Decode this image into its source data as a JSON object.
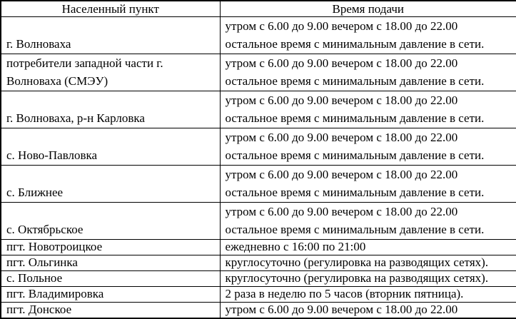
{
  "table": {
    "headers": {
      "settlement": "Населенный пункт",
      "schedule": "Время подачи"
    },
    "rows": [
      {
        "settlement": "г. Волноваха",
        "schedule": [
          "утром с 6.00 до 9.00 вечером с 18.00 до 22.00",
          "остальное время с минимальным давление в сети."
        ]
      },
      {
        "settlement": "потребители западной части г. Волноваха (СМЭУ)",
        "schedule": [
          "утром с 6.00 до 9.00 вечером с 18.00 до 22.00",
          "остальное время с минимальным давление в сети."
        ]
      },
      {
        "settlement": "г. Волноваха, р-н Карловка",
        "schedule": [
          "утром с 6.00 до 9.00 вечером с 18.00 до 22.00",
          "остальное время с минимальным давление в сети."
        ]
      },
      {
        "settlement": "с. Ново-Павловка",
        "schedule": [
          "утром с 6.00 до 9.00 вечером с 18.00 до 22.00",
          "остальное время с минимальным давление в сети."
        ]
      },
      {
        "settlement": "с. Ближнее",
        "schedule": [
          "утром с 6.00 до 9.00 вечером с 18.00 до 22.00",
          "остальное время с минимальным давление в сети."
        ]
      },
      {
        "settlement": "с. Октябрьское",
        "schedule": [
          "утром с 6.00 до 9.00 вечером с 18.00 до 22.00",
          "остальное время с минимальным давление в сети."
        ]
      },
      {
        "settlement": "пгт. Новотроицкое",
        "schedule": [
          "ежедневно с 16:00 по 21:00"
        ]
      },
      {
        "settlement": "пгт. Ольгинка",
        "schedule": [
          "круглосуточно (регулировка на разводящих сетях)."
        ]
      },
      {
        "settlement": "с. Польное",
        "schedule": [
          "круглосуточно (регулировка на разводящих сетях)."
        ]
      },
      {
        "settlement": "пгт. Владимировка",
        "schedule": [
          "2 раза в неделю по 5 часов (вторник пятница)."
        ]
      },
      {
        "settlement": "пгт. Донское",
        "schedule": [
          "утром с 6.00 до 9.00 вечером с 18.00 до 22.00"
        ]
      }
    ],
    "colors": {
      "border": "#000000",
      "text": "#000000",
      "background": "#ffffff"
    }
  }
}
